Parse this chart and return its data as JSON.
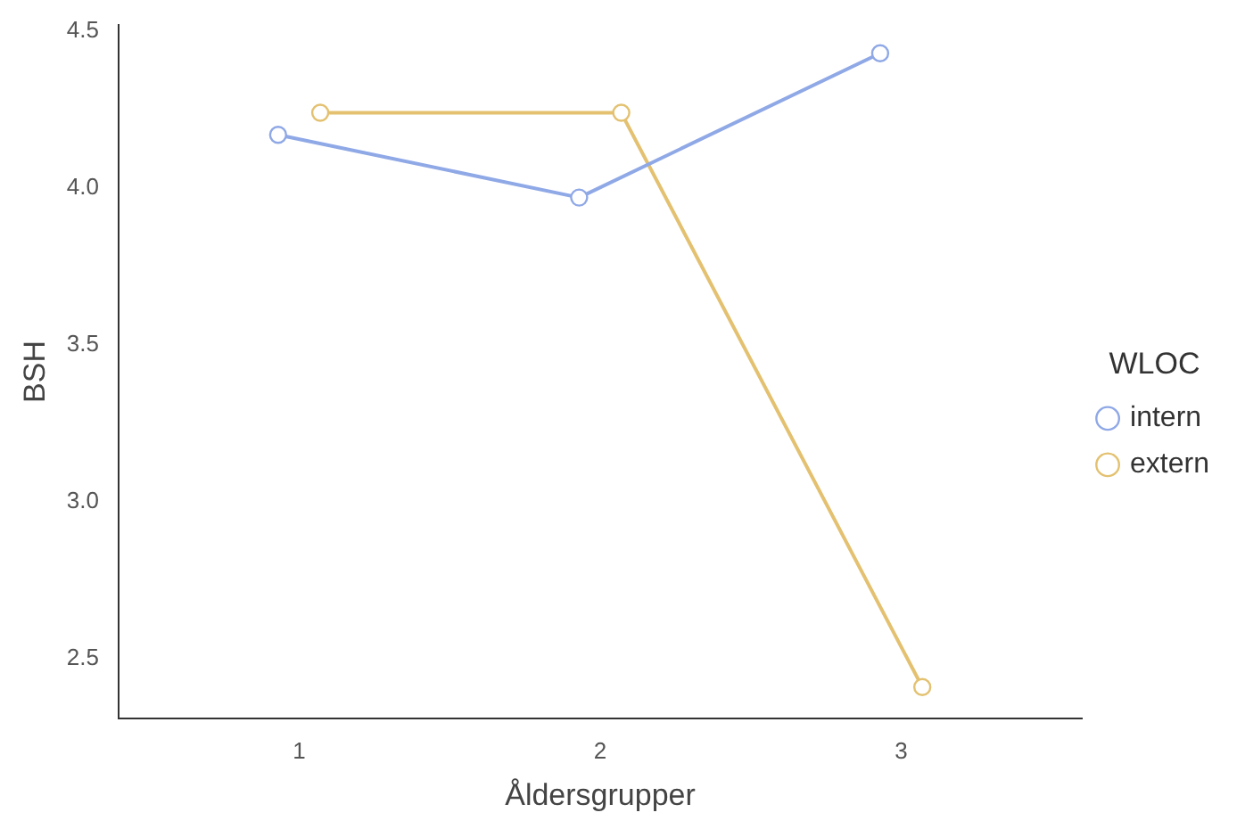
{
  "chart_data": {
    "type": "line",
    "xlabel": "Åldersgrupper",
    "ylabel": "BSH",
    "legend_title": "WLOC",
    "series": [
      {
        "name": "intern",
        "color": "#8fa8e6",
        "x": [
          0.93,
          1.93,
          2.93
        ],
        "values": [
          4.17,
          3.97,
          4.43
        ]
      },
      {
        "name": "extern",
        "color": "#e3c170",
        "x": [
          1.07,
          2.07,
          3.07
        ],
        "values": [
          4.24,
          4.24,
          2.41
        ]
      }
    ],
    "xlim": [
      0.4,
      3.6
    ],
    "ylim": [
      2.31,
      4.52
    ],
    "xticks": [
      1,
      2,
      3
    ],
    "yticks": [
      2.5,
      {
        "value": 3,
        "label": "3.0"
      },
      3.5,
      {
        "value": 4,
        "label": "4.0"
      },
      4.5
    ],
    "grid": false,
    "legend": "right",
    "marker": "circle",
    "line_style": "solid"
  }
}
